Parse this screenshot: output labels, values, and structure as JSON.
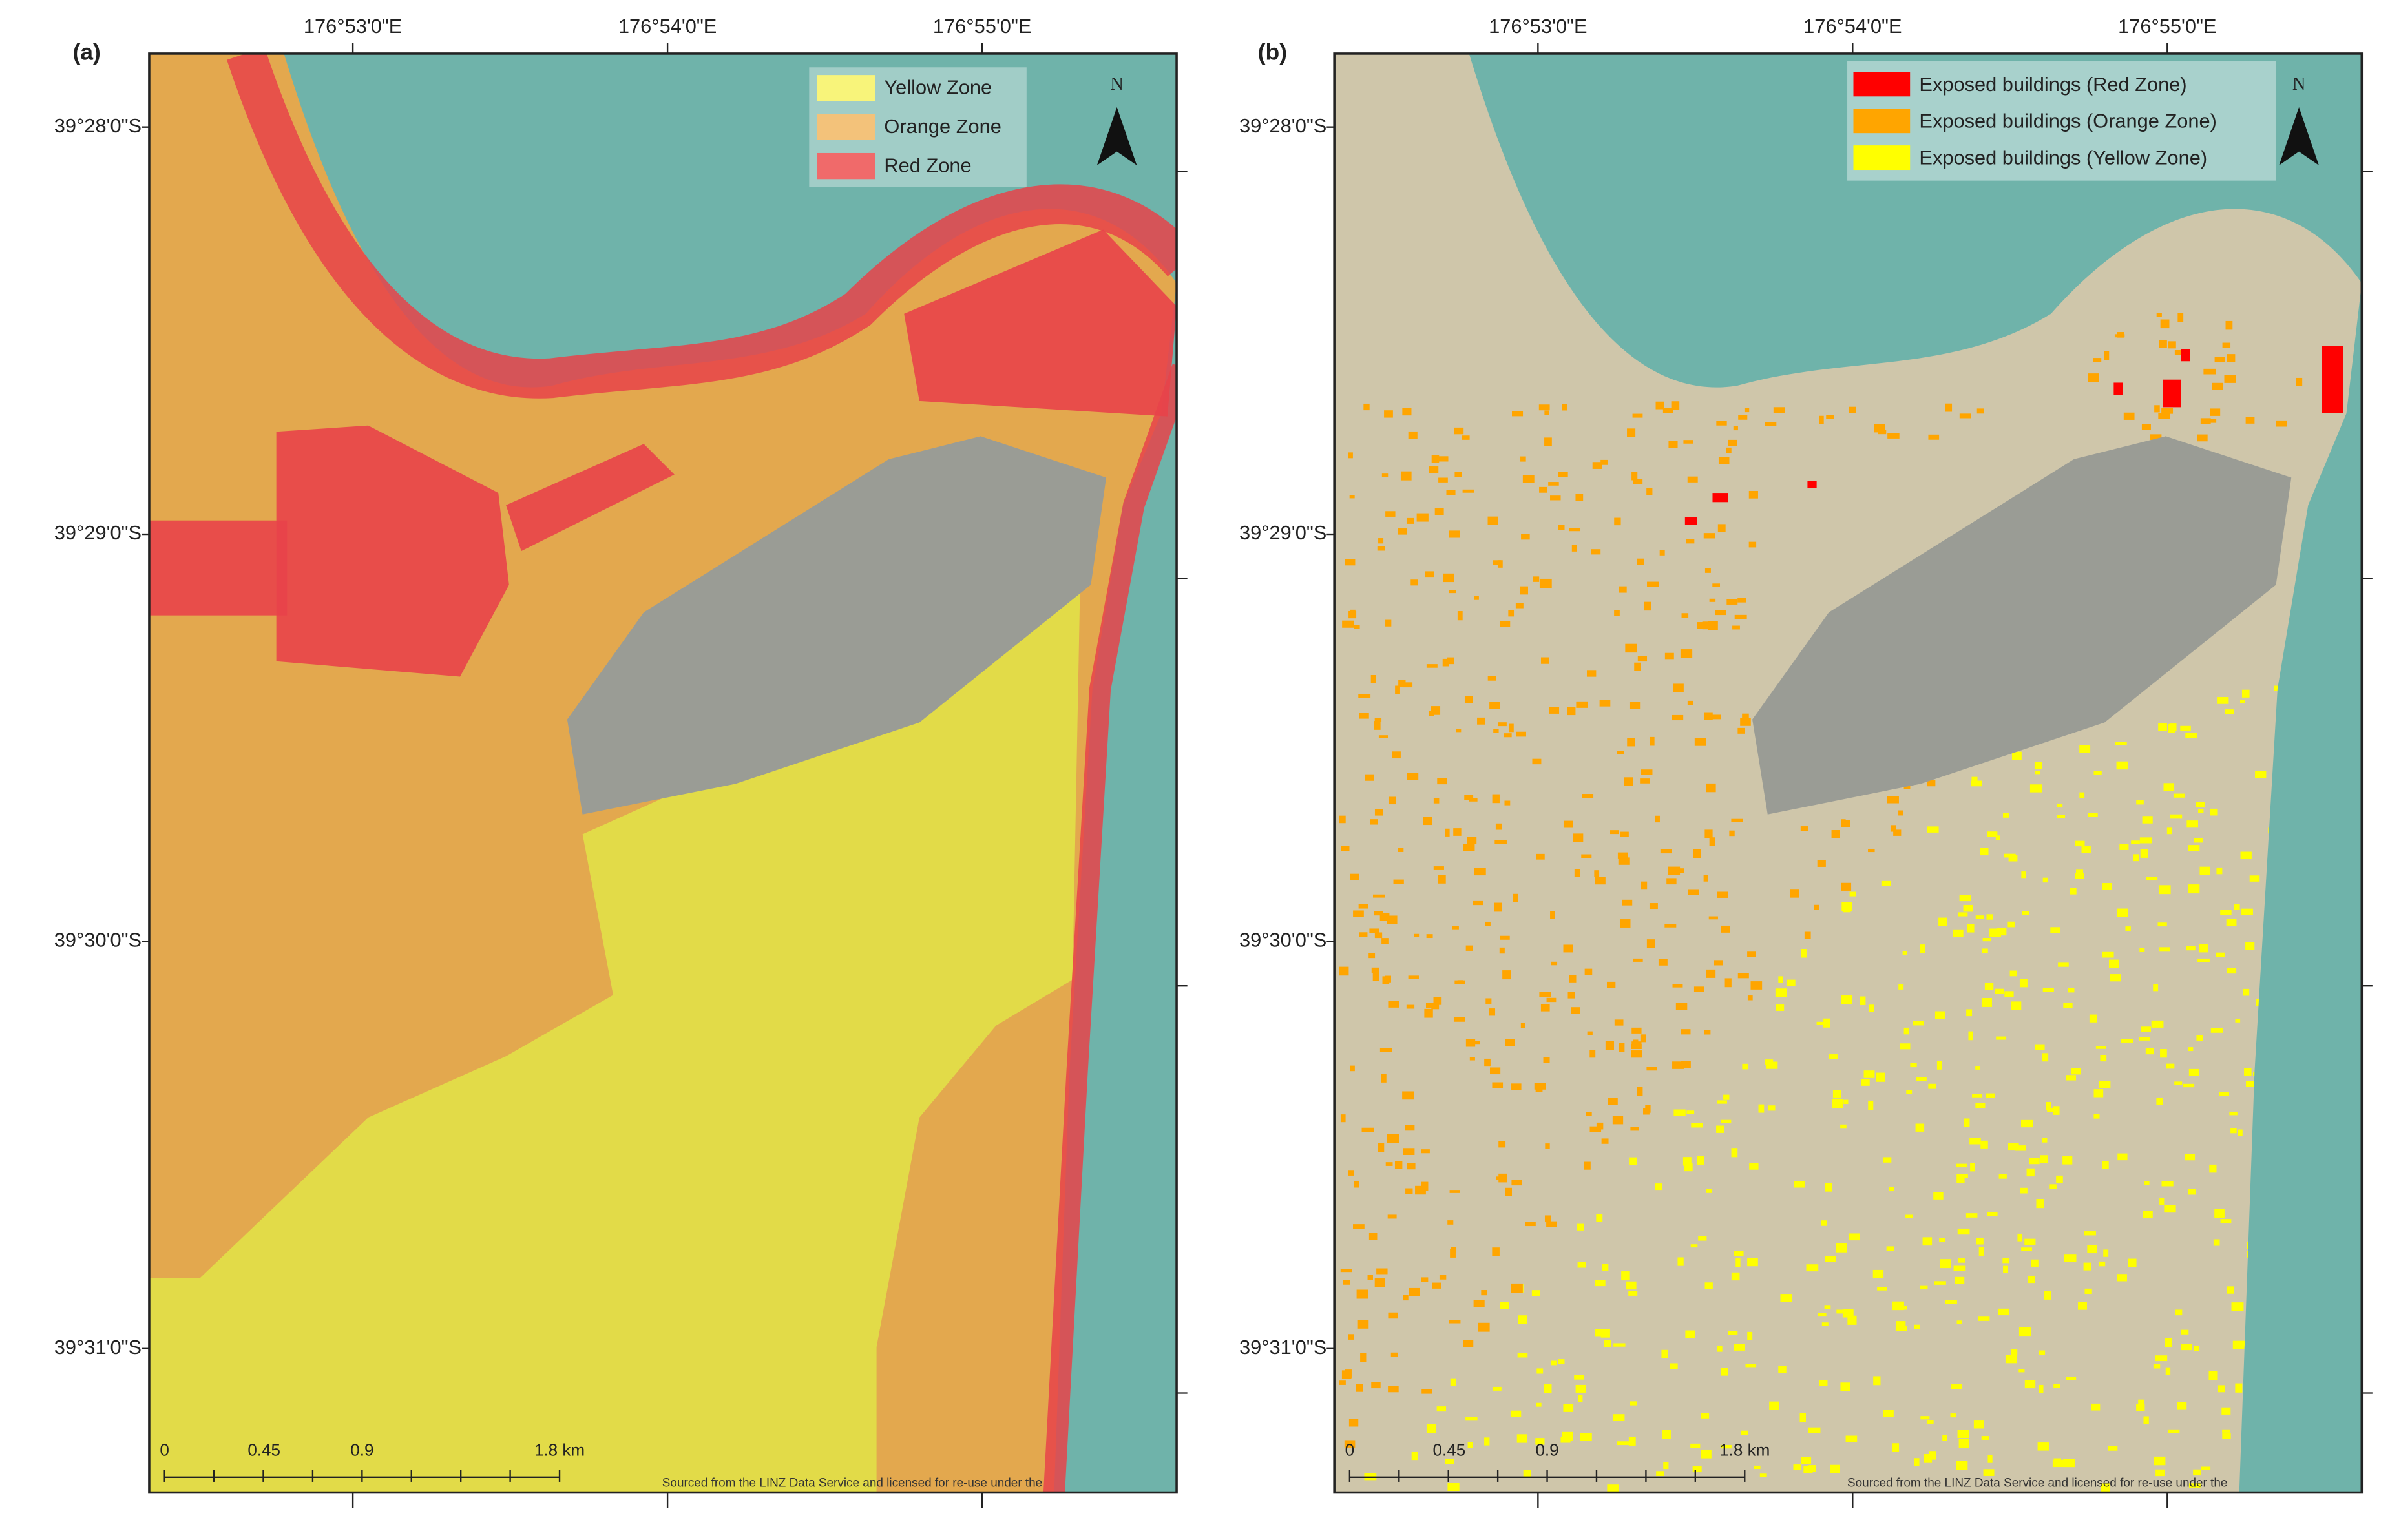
{
  "panels": [
    {
      "label": "(a)",
      "lon_ticks": [
        "176°53'0\"E",
        "176°54'0\"E",
        "176°55'0\"E"
      ],
      "lat_ticks": [
        "39°28'0\"S",
        "39°29'0\"S",
        "39°30'0\"S",
        "39°31'0\"S"
      ],
      "legend": [
        "Yellow Zone",
        "Orange Zone",
        "Red Zone"
      ],
      "north": "N",
      "scale_labels": [
        "0",
        "0.45",
        "0.9",
        "1.8 km"
      ],
      "attribution": "Sourced from the LINZ Data Service and licensed for re-use under the"
    },
    {
      "label": "(b)",
      "lon_ticks": [
        "176°53'0\"E",
        "176°54'0\"E",
        "176°55'0\"E"
      ],
      "lat_ticks": [
        "39°28'0\"S",
        "39°29'0\"S",
        "39°30'0\"S",
        "39°31'0\"S"
      ],
      "legend": [
        "Exposed buildings (Red Zone)",
        "Exposed buildings (Orange Zone)",
        "Exposed buildings (Yellow Zone)"
      ],
      "north": "N",
      "scale_labels": [
        "0",
        "0.45",
        "0.9",
        "1.8 km"
      ],
      "attribution": "Sourced from the LINZ Data Service and licensed for re-use under the"
    }
  ]
}
